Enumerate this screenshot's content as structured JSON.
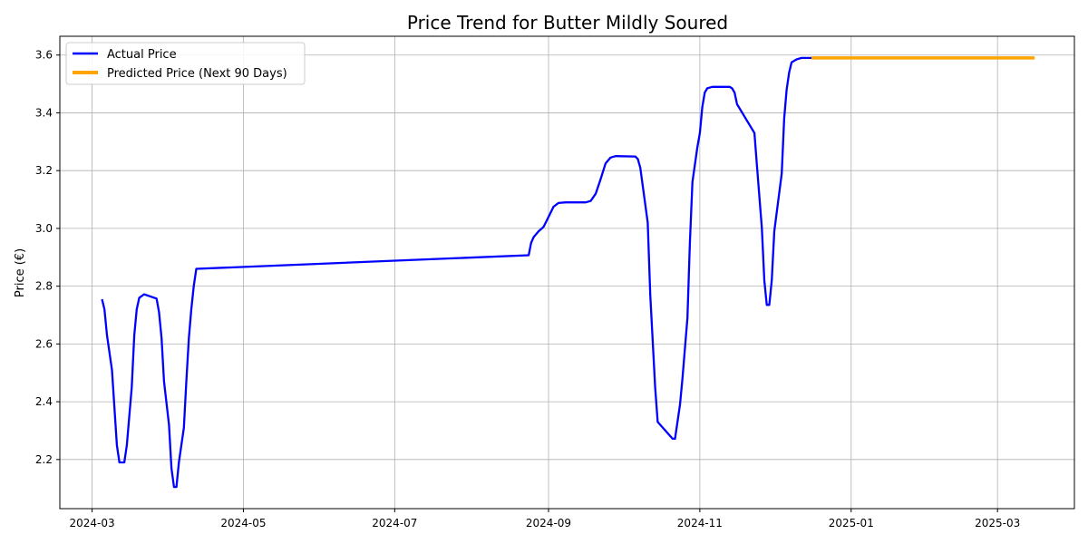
{
  "chart_data": {
    "type": "line",
    "title": "Price Trend for Butter Mildly Soured",
    "xlabel": "",
    "ylabel": "Price (€)",
    "x_type": "date",
    "xlim": [
      "2024-02-17",
      "2025-04-01"
    ],
    "ylim": [
      2.03,
      3.665
    ],
    "x_ticks": [
      "2024-03-01",
      "2024-05-01",
      "2024-07-01",
      "2024-09-01",
      "2024-11-01",
      "2025-01-01",
      "2025-03-01"
    ],
    "x_tick_labels": [
      "2024-03",
      "2024-05",
      "2024-07",
      "2024-09",
      "2024-11",
      "2025-01",
      "2025-03"
    ],
    "y_ticks": [
      2.2,
      2.4,
      2.6,
      2.8,
      3.0,
      3.2,
      3.4,
      3.6
    ],
    "y_tick_labels": [
      "2.2",
      "2.4",
      "2.6",
      "2.8",
      "3.0",
      "3.2",
      "3.4",
      "3.6"
    ],
    "grid": true,
    "legend_position": "top-left",
    "series": [
      {
        "name": "Actual Price",
        "color": "#0000ff",
        "points": [
          [
            "2024-03-05",
            2.755
          ],
          [
            "2024-03-06",
            2.72
          ],
          [
            "2024-03-07",
            2.63
          ],
          [
            "2024-03-09",
            2.51
          ],
          [
            "2024-03-11",
            2.25
          ],
          [
            "2024-03-12",
            2.19
          ],
          [
            "2024-03-14",
            2.19
          ],
          [
            "2024-03-15",
            2.25
          ],
          [
            "2024-03-17",
            2.45
          ],
          [
            "2024-03-18",
            2.63
          ],
          [
            "2024-03-19",
            2.72
          ],
          [
            "2024-03-20",
            2.76
          ],
          [
            "2024-03-22",
            2.772
          ],
          [
            "2024-03-27",
            2.757
          ],
          [
            "2024-03-28",
            2.71
          ],
          [
            "2024-03-29",
            2.62
          ],
          [
            "2024-03-30",
            2.47
          ],
          [
            "2024-04-01",
            2.32
          ],
          [
            "2024-04-02",
            2.17
          ],
          [
            "2024-04-03",
            2.105
          ],
          [
            "2024-04-04",
            2.105
          ],
          [
            "2024-04-05",
            2.19
          ],
          [
            "2024-04-07",
            2.31
          ],
          [
            "2024-04-08",
            2.47
          ],
          [
            "2024-04-09",
            2.62
          ],
          [
            "2024-04-10",
            2.72
          ],
          [
            "2024-04-11",
            2.8
          ],
          [
            "2024-04-12",
            2.86
          ],
          [
            "2024-08-24",
            2.907
          ],
          [
            "2024-08-25",
            2.95
          ],
          [
            "2024-08-26",
            2.97
          ],
          [
            "2024-08-28",
            2.99
          ],
          [
            "2024-08-30",
            3.005
          ],
          [
            "2024-09-01",
            3.04
          ],
          [
            "2024-09-03",
            3.075
          ],
          [
            "2024-09-05",
            3.088
          ],
          [
            "2024-09-08",
            3.09
          ],
          [
            "2024-09-16",
            3.09
          ],
          [
            "2024-09-18",
            3.095
          ],
          [
            "2024-09-20",
            3.12
          ],
          [
            "2024-09-22",
            3.17
          ],
          [
            "2024-09-24",
            3.225
          ],
          [
            "2024-09-26",
            3.245
          ],
          [
            "2024-09-28",
            3.25
          ],
          [
            "2024-10-06",
            3.249
          ],
          [
            "2024-10-07",
            3.24
          ],
          [
            "2024-10-08",
            3.21
          ],
          [
            "2024-10-11",
            3.02
          ],
          [
            "2024-10-12",
            2.77
          ],
          [
            "2024-10-14",
            2.45
          ],
          [
            "2024-10-15",
            2.33
          ],
          [
            "2024-10-21",
            2.272
          ],
          [
            "2024-10-22",
            2.272
          ],
          [
            "2024-10-24",
            2.39
          ],
          [
            "2024-10-25",
            2.48
          ],
          [
            "2024-10-27",
            2.69
          ],
          [
            "2024-10-28",
            2.95
          ],
          [
            "2024-10-29",
            3.16
          ],
          [
            "2024-10-31",
            3.28
          ],
          [
            "2024-11-01",
            3.33
          ],
          [
            "2024-11-02",
            3.42
          ],
          [
            "2024-11-03",
            3.47
          ],
          [
            "2024-11-04",
            3.485
          ],
          [
            "2024-11-06",
            3.49
          ],
          [
            "2024-11-13",
            3.49
          ],
          [
            "2024-11-14",
            3.485
          ],
          [
            "2024-11-15",
            3.47
          ],
          [
            "2024-11-16",
            3.43
          ],
          [
            "2024-11-23",
            3.33
          ],
          [
            "2024-11-24",
            3.22
          ],
          [
            "2024-11-26",
            3.0
          ],
          [
            "2024-11-27",
            2.82
          ],
          [
            "2024-11-28",
            2.735
          ],
          [
            "2024-11-29",
            2.735
          ],
          [
            "2024-11-30",
            2.82
          ],
          [
            "2024-12-01",
            2.99
          ],
          [
            "2024-12-04",
            3.19
          ],
          [
            "2024-12-05",
            3.38
          ],
          [
            "2024-12-06",
            3.48
          ],
          [
            "2024-12-07",
            3.54
          ],
          [
            "2024-12-08",
            3.575
          ],
          [
            "2024-12-10",
            3.585
          ],
          [
            "2024-12-12",
            3.59
          ],
          [
            "2024-12-16",
            3.59
          ]
        ]
      },
      {
        "name": "Predicted Price (Next 90 Days)",
        "color": "#ffa500",
        "points": [
          [
            "2024-12-16",
            3.59
          ],
          [
            "2025-03-16",
            3.59
          ]
        ]
      }
    ]
  }
}
